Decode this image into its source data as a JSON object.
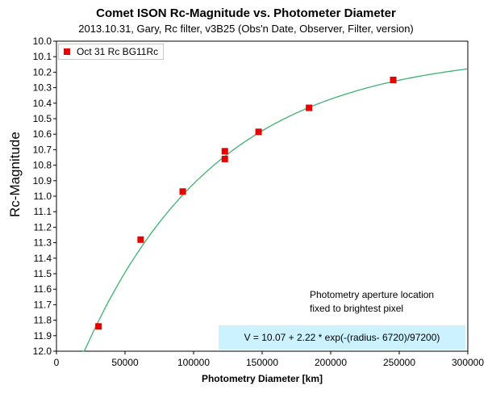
{
  "chart_data": {
    "type": "scatter",
    "title": "Comet ISON Rc-Magnitude vs. Photometer Diameter",
    "subtitle": "2013.10.31,  Gary,  Rc filter,  v3B25 (Obs'n Date, Observer, Filter, version)",
    "xlabel": "Photometry Diameter  [km]",
    "ylabel": "Rc-Magnitude",
    "xlim": [
      0,
      300000
    ],
    "ylim": [
      10.0,
      12.0
    ],
    "y_inverted": true,
    "grid": false,
    "legend_position": "top-left",
    "x_ticks": [
      0,
      50000,
      100000,
      150000,
      200000,
      250000,
      300000
    ],
    "y_ticks": [
      "10.0",
      "10.1",
      "10.2",
      "10.3",
      "10.4",
      "10.5",
      "10.6",
      "10.7",
      "10.8",
      "10.9",
      "11.0",
      "11.1",
      "11.2",
      "11.3",
      "11.4",
      "11.5",
      "11.6",
      "11.7",
      "11.8",
      "11.9",
      "12.0"
    ],
    "series": [
      {
        "name": "Oct 31 Rc BG11Rc",
        "color": "#e60000",
        "marker": "square",
        "points": [
          {
            "x": 30700,
            "y": 11.84
          },
          {
            "x": 61400,
            "y": 11.28
          },
          {
            "x": 92100,
            "y": 10.97
          },
          {
            "x": 122800,
            "y": 10.71
          },
          {
            "x": 122800,
            "y": 10.76
          },
          {
            "x": 147400,
            "y": 10.585
          },
          {
            "x": 184200,
            "y": 10.43
          },
          {
            "x": 245600,
            "y": 10.25
          }
        ]
      }
    ],
    "fit": {
      "color": "#3cb371",
      "a": 10.07,
      "b": 2.22,
      "c": 6720,
      "d": 97200,
      "x_range": [
        19000,
        300000
      ]
    },
    "annotations": [
      "Photometry aperture location",
      "fixed to brightest pixel",
      "V = 10.07 + 2.22 * exp(-(radius- 6720)/97200)"
    ]
  }
}
